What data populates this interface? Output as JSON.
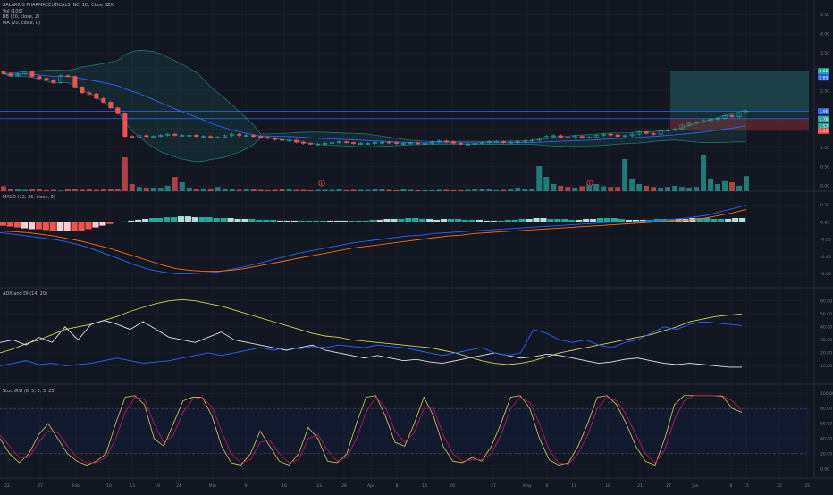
{
  "colors": {
    "background": "#131722",
    "grid": "#1e2230",
    "pane_divider": "#2a2e39",
    "axis_text": "#787b86",
    "bull": "#26a69a",
    "bear": "#ef5350",
    "volume_up": "#26a69a",
    "volume_down": "#ef5350",
    "bb_line": "#2962ff",
    "ma_line": "#2962ff",
    "macd_line": "#2962ff",
    "signal_line": "#ff6d00",
    "adx_line": "#cfcd5c",
    "di_plus": "#e0e3eb",
    "di_minus": "#2962ff",
    "stoch_k": "#cfcd5c",
    "stoch_d": "#c2185b",
    "hline_blue": "#2962ff",
    "target_zone": "#1f4f55",
    "stop_zone": "#5a2528"
  },
  "legend": {
    "title": "SALARIUS PHARMACEUTICALS INC, 1D, Cboe BZX",
    "vol": "Vol (100)",
    "bb": "BB (20, close, 2)",
    "ma": "MA (20, close, 0)"
  },
  "panes": {
    "price": {
      "y_ticks": [
        "4.50",
        "4.00",
        "3.50",
        "3.00",
        "2.50",
        "2.00",
        "1.50",
        "1.00",
        "0.50",
        "0.00"
      ],
      "y_range": [
        0.0,
        4.75
      ],
      "price_tags": [
        {
          "label": "3.02",
          "value": 3.02,
          "color": "#26a69a"
        },
        {
          "label": "2.85",
          "value": 2.85,
          "color": "#2962ff"
        },
        {
          "label": "1.96",
          "value": 1.96,
          "color": "#2962ff"
        },
        {
          "label": "1.76",
          "value": 1.76,
          "color": "#26a69a"
        },
        {
          "label": "1.57",
          "value": 1.57,
          "color": "#26a69a"
        },
        {
          "label": "1.45",
          "value": 1.45,
          "color": "#ef5350"
        }
      ],
      "hlines": [
        3.02,
        1.96,
        1.77
      ],
      "event_markers": [
        {
          "label": "E",
          "slot": 5
        },
        {
          "label": "E",
          "slot": 15
        }
      ]
    },
    "macd": {
      "legend": "MACD (12, 26, close, 9)",
      "y_ticks": [
        "0.20",
        "0.00",
        "-0.20",
        "-0.40",
        "-0.60"
      ],
      "y_range": [
        -0.7,
        0.3
      ]
    },
    "adx": {
      "legend": "ADX and DI (14, 20)",
      "y_ticks": [
        "60.00",
        "50.00",
        "40.00",
        "30.00",
        "20.00",
        "10.00"
      ],
      "y_range": [
        0,
        66
      ]
    },
    "stoch": {
      "legend": "StochRSI (8, 5, 3, 3, 25)",
      "y_ticks": [
        "100.00",
        "80.00",
        "60.00",
        "40.00",
        "20.00",
        "0.00"
      ],
      "y_range": [
        -5,
        105
      ]
    }
  },
  "x_axis": {
    "labels": [
      "22",
      "27",
      "Feb",
      "10",
      "13",
      "19",
      "24",
      "Mar",
      "9",
      "16",
      "23",
      "26",
      "Apr",
      "8",
      "14",
      "20",
      "27",
      "May",
      "6",
      "11",
      "18",
      "21",
      "27",
      "Jun",
      "8",
      "15",
      "22",
      "25"
    ]
  },
  "chart_data": [
    {
      "type": "candlestick",
      "title": "SALARIUS PHARMACEUTICALS INC, 1D, Cboe BZX",
      "closes": [
        2.95,
        2.9,
        2.95,
        3.0,
        2.88,
        2.83,
        2.78,
        2.72,
        2.9,
        2.88,
        2.6,
        2.45,
        2.42,
        2.3,
        2.2,
        2.05,
        1.9,
        1.3,
        1.28,
        1.32,
        1.3,
        1.3,
        1.33,
        1.36,
        1.33,
        1.33,
        1.33,
        1.3,
        1.3,
        1.28,
        1.28,
        1.32,
        1.36,
        1.33,
        1.33,
        1.3,
        1.28,
        1.25,
        1.22,
        1.2,
        1.2,
        1.15,
        1.12,
        1.1,
        1.1,
        1.12,
        1.14,
        1.16,
        1.14,
        1.12,
        1.12,
        1.12,
        1.14,
        1.15,
        1.14,
        1.12,
        1.12,
        1.13,
        1.12,
        1.12,
        1.16,
        1.18,
        1.16,
        1.12,
        1.1,
        1.1,
        1.12,
        1.14,
        1.16,
        1.16,
        1.14,
        1.15,
        1.16,
        1.18,
        1.2,
        1.25,
        1.3,
        1.32,
        1.28,
        1.26,
        1.3,
        1.28,
        1.28,
        1.33,
        1.36,
        1.34,
        1.3,
        1.32,
        1.36,
        1.42,
        1.38,
        1.36,
        1.45,
        1.47,
        1.5,
        1.6,
        1.65,
        1.68,
        1.72,
        1.75,
        1.78,
        1.85,
        1.82,
        1.92,
        1.97
      ],
      "volume": [
        0.14,
        0.06,
        0.05,
        0.04,
        0.05,
        0.05,
        0.03,
        0.04,
        0.02,
        0.06,
        0.05,
        0.04,
        0.05,
        0.04,
        0.06,
        0.05,
        0.05,
        0.95,
        0.2,
        0.12,
        0.1,
        0.1,
        0.1,
        0.15,
        0.4,
        0.25,
        0.1,
        0.06,
        0.08,
        0.08,
        0.12,
        0.08,
        0.05,
        0.04,
        0.06,
        0.05,
        0.04,
        0.03,
        0.04,
        0.05,
        0.06,
        0.04,
        0.04,
        0.03,
        0.04,
        0.04,
        0.04,
        0.05,
        0.03,
        0.04,
        0.04,
        0.04,
        0.05,
        0.05,
        0.04,
        0.03,
        0.05,
        0.04,
        0.03,
        0.03,
        0.03,
        0.04,
        0.04,
        0.03,
        0.03,
        0.04,
        0.05,
        0.06,
        0.05,
        0.03,
        0.04,
        0.06,
        0.1,
        0.06,
        0.08,
        0.7,
        0.4,
        0.2,
        0.15,
        0.12,
        0.1,
        0.14,
        0.16,
        0.2,
        0.14,
        0.12,
        0.12,
        0.9,
        0.35,
        0.2,
        0.15,
        0.12,
        0.1,
        0.12,
        0.15,
        0.12,
        0.1,
        0.12,
        1.0,
        0.35,
        0.2,
        0.28,
        0.25,
        0.15,
        0.42
      ]
    },
    {
      "type": "line",
      "title": "MACD (12, 26, close, 9)",
      "series": [
        {
          "values": [
            -0.12,
            -0.14,
            -0.16,
            -0.18,
            -0.2,
            -0.23,
            -0.27,
            -0.32,
            -0.38,
            -0.44,
            -0.5,
            -0.55,
            -0.58,
            -0.6,
            -0.6,
            -0.59,
            -0.58,
            -0.55,
            -0.52,
            -0.48,
            -0.44,
            -0.4,
            -0.36,
            -0.33,
            -0.3,
            -0.27,
            -0.24,
            -0.22,
            -0.2,
            -0.18,
            -0.16,
            -0.15,
            -0.13,
            -0.12,
            -0.11,
            -0.1,
            -0.09,
            -0.08,
            -0.07,
            -0.06,
            -0.05,
            -0.04,
            -0.03,
            -0.02,
            -0.01,
            0.0,
            0.0,
            0.01,
            0.02,
            0.03,
            0.04,
            0.06,
            0.08,
            0.12,
            0.16,
            0.2
          ]
        },
        {
          "values": [
            -0.1,
            -0.11,
            -0.12,
            -0.14,
            -0.16,
            -0.19,
            -0.22,
            -0.26,
            -0.3,
            -0.35,
            -0.4,
            -0.45,
            -0.5,
            -0.54,
            -0.56,
            -0.57,
            -0.57,
            -0.56,
            -0.54,
            -0.51,
            -0.48,
            -0.45,
            -0.42,
            -0.39,
            -0.36,
            -0.33,
            -0.3,
            -0.28,
            -0.26,
            -0.24,
            -0.22,
            -0.2,
            -0.18,
            -0.16,
            -0.15,
            -0.13,
            -0.12,
            -0.11,
            -0.1,
            -0.09,
            -0.08,
            -0.07,
            -0.06,
            -0.05,
            -0.04,
            -0.03,
            -0.02,
            -0.01,
            0.0,
            0.01,
            0.02,
            0.03,
            0.05,
            0.08,
            0.11,
            0.15
          ]
        }
      ],
      "histogram": [
        -0.04,
        -0.05,
        -0.06,
        -0.07,
        -0.08,
        -0.08,
        -0.09,
        -0.1,
        -0.1,
        -0.1,
        -0.1,
        -0.1,
        -0.08,
        -0.06,
        -0.04,
        -0.02,
        0.0,
        0.01,
        0.02,
        0.03,
        0.04,
        0.05,
        0.05,
        0.06,
        0.06,
        0.07,
        0.07,
        0.06,
        0.06,
        0.06,
        0.05,
        0.05,
        0.05,
        0.04,
        0.04,
        0.04,
        0.03,
        0.03,
        0.03,
        0.02,
        0.02,
        0.02,
        0.02,
        0.02,
        0.02,
        0.02,
        0.02,
        0.02,
        0.02,
        0.02,
        0.02,
        0.02,
        0.03,
        0.03,
        0.04,
        0.04,
        0.04,
        0.05,
        0.05,
        0.04,
        0.04,
        0.03,
        0.04,
        0.04,
        0.04,
        0.03,
        0.03,
        0.03,
        0.02,
        0.02,
        0.02,
        0.03,
        0.03,
        0.04,
        0.04,
        0.05,
        0.05,
        0.04,
        0.04,
        0.04,
        0.03,
        0.03,
        0.04,
        0.04,
        0.05,
        0.05,
        0.05,
        0.04,
        0.03,
        0.03,
        0.03,
        0.03,
        0.04,
        0.04,
        0.03,
        0.04,
        0.04,
        0.05,
        0.05,
        0.05,
        0.04,
        0.04,
        0.04,
        0.05,
        0.05
      ]
    },
    {
      "type": "line",
      "title": "ADX and DI (14, 20)",
      "series": [
        {
          "values": [
            20,
            23,
            27,
            30,
            34,
            38,
            40,
            42,
            45,
            48,
            52,
            55,
            58,
            60,
            61,
            60,
            58,
            56,
            53,
            50,
            47,
            44,
            41,
            38,
            35,
            33,
            32,
            30,
            29,
            28,
            27,
            26,
            25,
            24,
            22,
            20,
            17,
            14,
            12,
            11,
            12,
            14,
            17,
            20,
            22,
            24,
            26,
            28,
            30,
            32,
            34,
            37,
            40,
            44,
            46,
            48,
            49,
            50
          ]
        },
        {
          "values": [
            28,
            30,
            26,
            32,
            28,
            40,
            30,
            42,
            45,
            42,
            38,
            44,
            38,
            32,
            30,
            28,
            32,
            36,
            30,
            28,
            26,
            24,
            22,
            24,
            26,
            22,
            20,
            18,
            16,
            18,
            16,
            14,
            15,
            13,
            12,
            14,
            16,
            18,
            20,
            18,
            16,
            17,
            19,
            18,
            16,
            14,
            12,
            13,
            15,
            16,
            14,
            12,
            11,
            12,
            11,
            10,
            9,
            9
          ]
        },
        {
          "values": [
            10,
            12,
            14,
            11,
            12,
            10,
            11,
            12,
            14,
            16,
            14,
            12,
            13,
            14,
            16,
            18,
            20,
            18,
            20,
            22,
            24,
            22,
            24,
            23,
            25,
            24,
            26,
            25,
            24,
            26,
            25,
            24,
            22,
            20,
            18,
            20,
            22,
            24,
            20,
            18,
            20,
            38,
            35,
            30,
            28,
            30,
            26,
            24,
            28,
            30,
            35,
            40,
            38,
            42,
            44,
            43,
            42,
            41
          ]
        }
      ]
    },
    {
      "type": "line",
      "title": "StochRSI (8, 5, 3, 3, 25)",
      "series": [
        {
          "values": [
            40,
            20,
            8,
            20,
            45,
            60,
            40,
            20,
            10,
            5,
            10,
            20,
            60,
            95,
            97,
            85,
            40,
            30,
            60,
            90,
            95,
            95,
            70,
            30,
            8,
            5,
            20,
            50,
            30,
            10,
            5,
            20,
            55,
            40,
            10,
            8,
            20,
            60,
            95,
            97,
            70,
            35,
            30,
            60,
            95,
            70,
            30,
            10,
            8,
            15,
            10,
            30,
            60,
            95,
            97,
            80,
            40,
            12,
            5,
            8,
            30,
            60,
            95,
            97,
            85,
            60,
            30,
            10,
            5,
            40,
            85,
            97,
            97,
            97,
            97,
            96,
            80,
            75
          ]
        },
        {
          "values": [
            45,
            30,
            15,
            15,
            35,
            50,
            48,
            30,
            15,
            8,
            8,
            15,
            40,
            75,
            95,
            92,
            60,
            35,
            45,
            75,
            92,
            95,
            82,
            50,
            20,
            8,
            12,
            35,
            38,
            20,
            8,
            12,
            40,
            45,
            25,
            10,
            15,
            40,
            75,
            95,
            82,
            50,
            35,
            48,
            80,
            80,
            45,
            20,
            10,
            12,
            12,
            20,
            45,
            80,
            95,
            88,
            60,
            25,
            8,
            6,
            20,
            45,
            80,
            95,
            90,
            72,
            45,
            20,
            8,
            25,
            65,
            90,
            97,
            97,
            97,
            97,
            90,
            78
          ]
        }
      ]
    }
  ]
}
